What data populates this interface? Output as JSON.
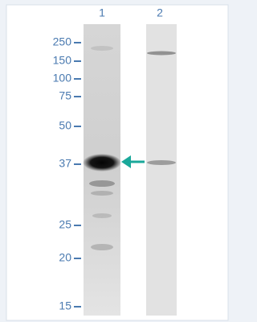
{
  "lanes": [
    "1",
    "2"
  ],
  "markers": [
    "250",
    "150",
    "100",
    "75",
    "50",
    "37",
    "25",
    "20",
    "15"
  ]
}
